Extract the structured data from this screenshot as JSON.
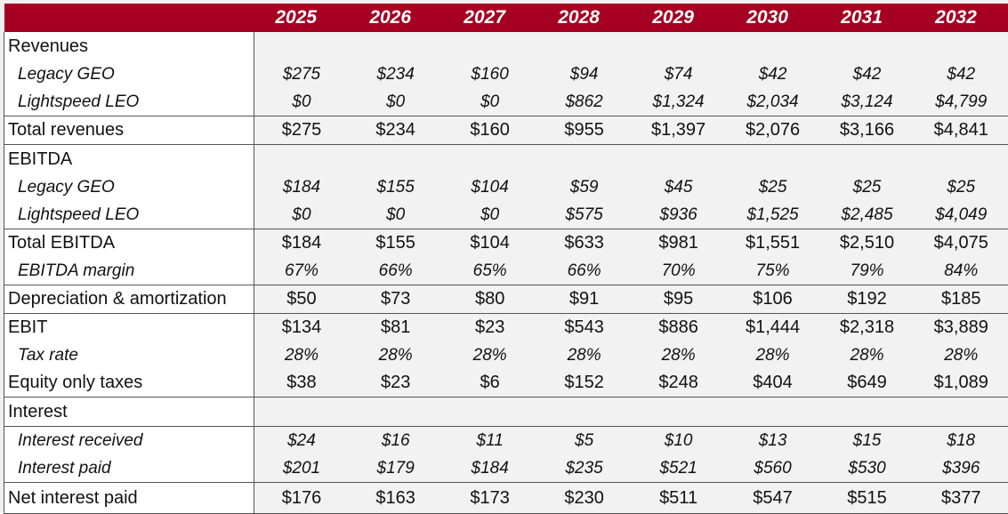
{
  "years": [
    "2025",
    "2026",
    "2027",
    "2028",
    "2029",
    "2030",
    "2031",
    "2032"
  ],
  "rows": [
    {
      "label": "Revenues",
      "kind": "hdr",
      "topline": false,
      "values": [
        "",
        "",
        "",
        "",
        "",
        "",
        "",
        ""
      ]
    },
    {
      "label": "Legacy GEO",
      "kind": "sub",
      "topline": false,
      "values": [
        "$275",
        "$234",
        "$160",
        "$94",
        "$74",
        "$42",
        "$42",
        "$42"
      ]
    },
    {
      "label": "Lightspeed LEO",
      "kind": "sub",
      "topline": false,
      "values": [
        "$0",
        "$0",
        "$0",
        "$862",
        "$1,324",
        "$2,034",
        "$3,124",
        "$4,799"
      ]
    },
    {
      "label": "Total revenues",
      "kind": "main",
      "topline": true,
      "values": [
        "$275",
        "$234",
        "$160",
        "$955",
        "$1,397",
        "$2,076",
        "$3,166",
        "$4,841"
      ]
    },
    {
      "label": "EBITDA",
      "kind": "hdr",
      "topline": true,
      "values": [
        "",
        "",
        "",
        "",
        "",
        "",
        "",
        ""
      ]
    },
    {
      "label": "Legacy GEO",
      "kind": "sub",
      "topline": false,
      "values": [
        "$184",
        "$155",
        "$104",
        "$59",
        "$45",
        "$25",
        "$25",
        "$25"
      ]
    },
    {
      "label": "Lightspeed LEO",
      "kind": "sub",
      "topline": false,
      "values": [
        "$0",
        "$0",
        "$0",
        "$575",
        "$936",
        "$1,525",
        "$2,485",
        "$4,049"
      ]
    },
    {
      "label": "Total EBITDA",
      "kind": "main",
      "topline": true,
      "values": [
        "$184",
        "$155",
        "$104",
        "$633",
        "$981",
        "$1,551",
        "$2,510",
        "$4,075"
      ]
    },
    {
      "label": "EBITDA margin",
      "kind": "sub",
      "topline": false,
      "values": [
        "67%",
        "66%",
        "65%",
        "66%",
        "70%",
        "75%",
        "79%",
        "84%"
      ]
    },
    {
      "label": "Depreciation & amortization",
      "kind": "main",
      "topline": true,
      "values": [
        "$50",
        "$73",
        "$80",
        "$91",
        "$95",
        "$106",
        "$192",
        "$185"
      ]
    },
    {
      "label": "EBIT",
      "kind": "main",
      "topline": true,
      "values": [
        "$134",
        "$81",
        "$23",
        "$543",
        "$886",
        "$1,444",
        "$2,318",
        "$3,889"
      ]
    },
    {
      "label": "Tax rate",
      "kind": "sub",
      "topline": false,
      "values": [
        "28%",
        "28%",
        "28%",
        "28%",
        "28%",
        "28%",
        "28%",
        "28%"
      ]
    },
    {
      "label": "Equity only taxes",
      "kind": "main",
      "topline": false,
      "values": [
        "$38",
        "$23",
        "$6",
        "$152",
        "$248",
        "$404",
        "$649",
        "$1,089"
      ]
    },
    {
      "label": "Interest",
      "kind": "hdr",
      "topline": true,
      "values": [
        "",
        "",
        "",
        "",
        "",
        "",
        "",
        ""
      ]
    },
    {
      "label": "Interest received",
      "kind": "sub",
      "topline": true,
      "values": [
        "$24",
        "$16",
        "$11",
        "$5",
        "$10",
        "$13",
        "$15",
        "$18"
      ]
    },
    {
      "label": "Interest paid",
      "kind": "sub",
      "topline": false,
      "values": [
        "$201",
        "$179",
        "$184",
        "$235",
        "$521",
        "$560",
        "$530",
        "$396"
      ]
    },
    {
      "label": "Net interest paid",
      "kind": "main",
      "topline": true,
      "last": true,
      "values": [
        "$176",
        "$163",
        "$173",
        "$230",
        "$511",
        "$547",
        "$515",
        "$377"
      ]
    }
  ]
}
